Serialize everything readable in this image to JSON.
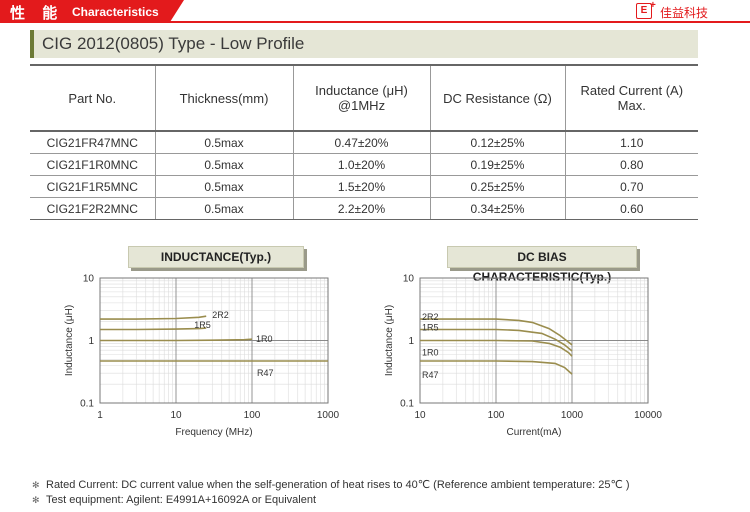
{
  "header": {
    "zh_title": "性 能",
    "en_title": "Characteristics",
    "logo_mark": "E",
    "logo_plus": "+",
    "brand": "佳益科技",
    "accent": "#e31a1c"
  },
  "section_title": "CIG 2012(0805) Type - Low Profile",
  "table": {
    "headers": [
      {
        "line1": "Part No.",
        "line2": ""
      },
      {
        "line1": "Thickness(mm)",
        "line2": ""
      },
      {
        "line1": "Inductance (μH)",
        "line2": "@1MHz"
      },
      {
        "line1": "DC Resistance (Ω)",
        "line2": ""
      },
      {
        "line1": "Rated Current (A)",
        "line2": "Max."
      }
    ],
    "rows": [
      [
        "CIG21FR47MNC",
        "0.5max",
        "0.47±20%",
        "0.12±25%",
        "1.10"
      ],
      [
        "CIG21F1R0MNC",
        "0.5max",
        "1.0±20%",
        "0.19±25%",
        "0.80"
      ],
      [
        "CIG21F1R5MNC",
        "0.5max",
        "1.5±20%",
        "0.25±25%",
        "0.70"
      ],
      [
        "CIG21F2R2MNC",
        "0.5max",
        "2.2±20%",
        "0.34±25%",
        "0.60"
      ]
    ]
  },
  "chart_data": [
    {
      "type": "line",
      "title": "INDUCTANCE(Typ.)",
      "xlabel": "Frequency (MHz)",
      "ylabel": "Inductance (μH)",
      "x_scale": "log",
      "y_scale": "log",
      "xlim": [
        1,
        1000
      ],
      "ylim": [
        0.1,
        10
      ],
      "xticks": [
        "1",
        "10",
        "100",
        "1000"
      ],
      "yticks": [
        "0.1",
        "1",
        "10"
      ],
      "grid": true,
      "series": [
        {
          "name": "2R2",
          "x": [
            1,
            3,
            10,
            20,
            25
          ],
          "y": [
            2.2,
            2.2,
            2.25,
            2.35,
            2.45
          ]
        },
        {
          "name": "1R5",
          "x": [
            1,
            3,
            10,
            20,
            25
          ],
          "y": [
            1.5,
            1.5,
            1.52,
            1.55,
            1.58
          ]
        },
        {
          "name": "1R0",
          "x": [
            1,
            3,
            10,
            30,
            80,
            100
          ],
          "y": [
            1.0,
            1.0,
            1.0,
            1.01,
            1.03,
            1.05
          ]
        },
        {
          "name": "R47",
          "x": [
            1,
            10,
            100,
            1000
          ],
          "y": [
            0.47,
            0.47,
            0.47,
            0.47
          ]
        }
      ],
      "color": "#9a8d4e"
    },
    {
      "type": "line",
      "title": "DC BIAS CHARACTERISTIC(Typ.)",
      "xlabel": "Current(mA)",
      "ylabel": "Inductance (μH)",
      "x_scale": "log",
      "y_scale": "log",
      "xlim": [
        10,
        10000
      ],
      "ylim": [
        0.1,
        10
      ],
      "xticks": [
        "10",
        "100",
        "1000",
        "10000"
      ],
      "yticks": [
        "0.1",
        "1",
        "10"
      ],
      "grid": true,
      "series": [
        {
          "name": "2R2",
          "x": [
            10,
            100,
            200,
            300,
            500,
            700,
            1000
          ],
          "y": [
            2.2,
            2.2,
            2.1,
            1.95,
            1.55,
            1.2,
            0.85
          ]
        },
        {
          "name": "1R5",
          "x": [
            10,
            100,
            200,
            400,
            600,
            800,
            1000
          ],
          "y": [
            1.5,
            1.5,
            1.45,
            1.3,
            1.05,
            0.85,
            0.68
          ]
        },
        {
          "name": "1R0",
          "x": [
            10,
            100,
            300,
            500,
            700,
            900,
            1000
          ],
          "y": [
            1.0,
            1.0,
            0.98,
            0.9,
            0.78,
            0.64,
            0.56
          ]
        },
        {
          "name": "R47",
          "x": [
            10,
            100,
            300,
            600,
            800,
            1000
          ],
          "y": [
            0.47,
            0.47,
            0.46,
            0.43,
            0.37,
            0.29
          ]
        }
      ],
      "color": "#9a8d4e"
    }
  ],
  "notes": [
    "Rated Current: DC current value when the self-generation of heat rises to 40℃ (Reference ambient temperature: 25℃ )",
    "Test equipment: Agilent: E4991A+16092A or Equivalent"
  ]
}
